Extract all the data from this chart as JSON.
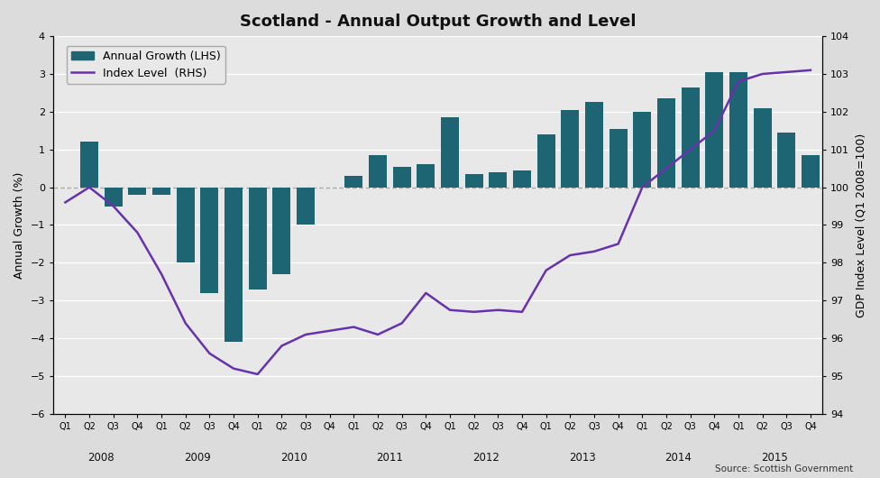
{
  "title": "Scotland - Annual Output Growth and Level",
  "source_text": "Source: Scottish Government",
  "bar_color": "#1d6572",
  "line_color": "#6633aa",
  "background_color": "#dcdcdc",
  "plot_bg_color": "#e8e8e8",
  "ylabel_left": "Annual Growth (%)",
  "ylabel_right": "GDP Index Level (Q1 2008=100)",
  "ylim_left": [
    -6.0,
    4.0
  ],
  "ylim_right": [
    94.0,
    104.0
  ],
  "yticks_left": [
    -6.0,
    -5.0,
    -4.0,
    -3.0,
    -2.0,
    -1.0,
    0.0,
    1.0,
    2.0,
    3.0,
    4.0
  ],
  "yticks_right": [
    94,
    95,
    96,
    97,
    98,
    99,
    100,
    101,
    102,
    103,
    104
  ],
  "labels": [
    "Q1",
    "Q2",
    "Q3",
    "Q4",
    "Q1",
    "Q2",
    "Q3",
    "Q4",
    "Q1",
    "Q2",
    "Q3",
    "Q4",
    "Q1",
    "Q2",
    "Q3",
    "Q4",
    "Q1",
    "Q2",
    "Q3",
    "Q4",
    "Q1",
    "Q2",
    "Q3",
    "Q4",
    "Q1",
    "Q2",
    "Q3",
    "Q4",
    "Q1",
    "Q2",
    "Q3",
    "Q4"
  ],
  "year_labels": [
    "2008",
    "2009",
    "2010",
    "2011",
    "2012",
    "2013",
    "2014",
    "2015"
  ],
  "year_positions": [
    1.5,
    5.5,
    9.5,
    13.5,
    17.5,
    21.5,
    25.5,
    29.5
  ],
  "bar_values": [
    0.0,
    1.2,
    -0.5,
    -0.2,
    -0.2,
    -2.0,
    -2.8,
    -4.1,
    -2.7,
    -2.3,
    -1.0,
    0.0,
    0.3,
    0.85,
    0.55,
    0.6,
    1.85,
    0.35,
    0.4,
    0.45,
    1.4,
    2.05,
    2.25,
    1.55,
    2.0,
    2.35,
    2.65,
    3.05,
    3.05,
    2.1,
    1.45,
    0.85
  ],
  "line_values": [
    99.6,
    100.0,
    99.5,
    98.8,
    97.7,
    96.4,
    95.6,
    95.2,
    95.05,
    95.8,
    96.1,
    96.2,
    96.3,
    96.1,
    96.4,
    97.2,
    96.75,
    96.7,
    96.75,
    96.7,
    97.8,
    98.2,
    98.3,
    98.5,
    100.0,
    100.5,
    101.0,
    101.5,
    102.8,
    103.0,
    103.05,
    103.1
  ]
}
